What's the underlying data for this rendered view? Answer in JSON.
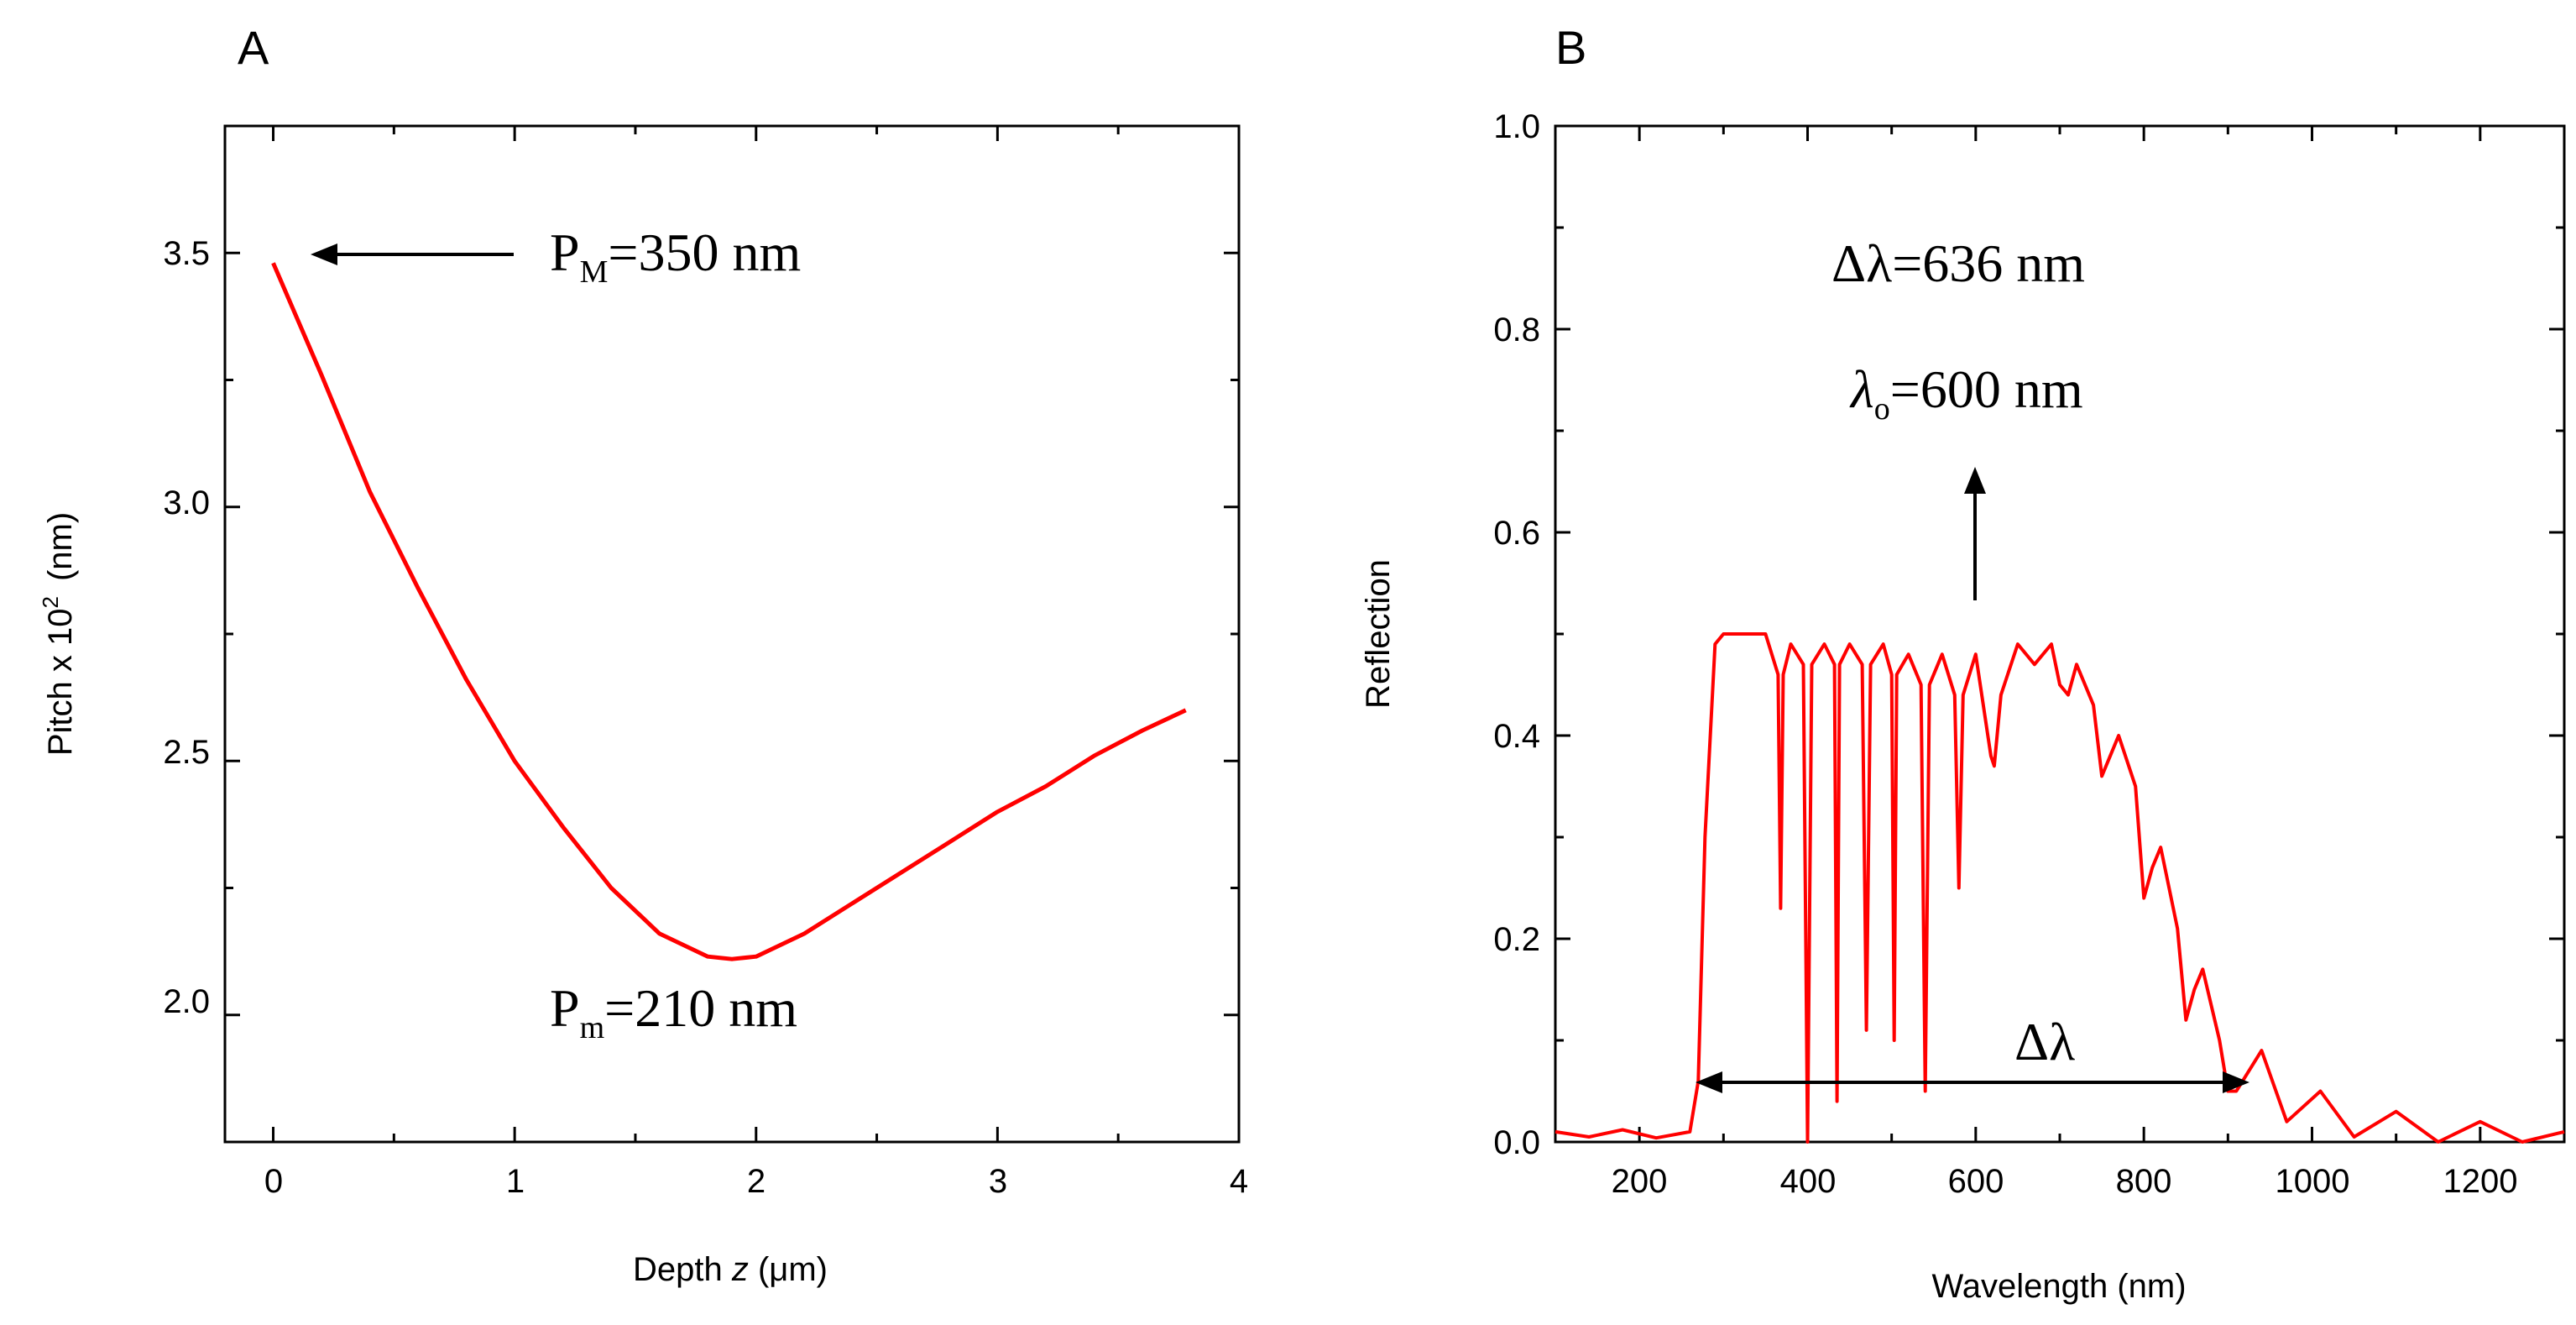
{
  "chart_data": [
    {
      "panel_label": "A",
      "type": "line",
      "xlabel": "Depth",
      "xlabel_var": "z",
      "xlabel_unit": "(μm)",
      "ylabel": "Pitch x 10",
      "ylabel_exp": "2",
      "ylabel_unit": "(nm)",
      "xlim": [
        -0.2,
        4.0
      ],
      "ylim": [
        1.75,
        3.75
      ],
      "x_ticks": [
        "0",
        "1",
        "2",
        "3",
        "4"
      ],
      "y_ticks": [
        "2.0",
        "2.5",
        "3.0",
        "3.5"
      ],
      "series": [
        {
          "color": "#ff0000",
          "x": [
            0.0,
            0.2,
            0.4,
            0.6,
            0.8,
            1.0,
            1.2,
            1.4,
            1.6,
            1.8,
            1.9,
            2.0,
            2.2,
            2.4,
            2.6,
            2.8,
            3.0,
            3.2,
            3.4,
            3.6,
            3.78
          ],
          "y": [
            3.48,
            3.26,
            3.03,
            2.84,
            2.66,
            2.5,
            2.37,
            2.25,
            2.16,
            2.115,
            2.11,
            2.115,
            2.16,
            2.22,
            2.28,
            2.34,
            2.4,
            2.45,
            2.51,
            2.56,
            2.6
          ]
        }
      ],
      "annotations": [
        {
          "main": "P",
          "sub": "M",
          "rest": "=350 nm"
        },
        {
          "main": "P",
          "sub": "m",
          "rest": "=210 nm"
        }
      ]
    },
    {
      "panel_label": "B",
      "type": "line",
      "xlabel": "Wavelength (nm)",
      "ylabel": "Reflection",
      "xlim": [
        100,
        1300
      ],
      "ylim": [
        0.0,
        1.0
      ],
      "x_ticks": [
        "200",
        "400",
        "600",
        "800",
        "1000",
        "1200"
      ],
      "y_ticks": [
        "0.0",
        "0.2",
        "0.4",
        "0.6",
        "0.8",
        "1.0"
      ],
      "series": [
        {
          "color": "#ff0000",
          "x": [
            100,
            140,
            180,
            220,
            260,
            270,
            278,
            290,
            300,
            320,
            350,
            365,
            368,
            371,
            380,
            395,
            400,
            405,
            420,
            432,
            435,
            438,
            450,
            465,
            470,
            475,
            490,
            500,
            503,
            506,
            520,
            535,
            540,
            545,
            560,
            575,
            580,
            585,
            600,
            618,
            622,
            630,
            650,
            670,
            690,
            700,
            710,
            720,
            740,
            750,
            760,
            770,
            790,
            800,
            810,
            820,
            840,
            850,
            860,
            870,
            890,
            900,
            910,
            940,
            970,
            1010,
            1050,
            1100,
            1150,
            1200,
            1250,
            1300
          ],
          "y": [
            0.01,
            0.005,
            0.012,
            0.004,
            0.01,
            0.06,
            0.3,
            0.49,
            0.5,
            0.5,
            0.5,
            0.46,
            0.23,
            0.46,
            0.49,
            0.47,
            0.0,
            0.47,
            0.49,
            0.47,
            0.04,
            0.47,
            0.49,
            0.47,
            0.11,
            0.47,
            0.49,
            0.46,
            0.1,
            0.46,
            0.48,
            0.45,
            0.05,
            0.45,
            0.48,
            0.44,
            0.25,
            0.44,
            0.48,
            0.38,
            0.37,
            0.44,
            0.49,
            0.47,
            0.49,
            0.45,
            0.44,
            0.47,
            0.43,
            0.36,
            0.38,
            0.4,
            0.35,
            0.24,
            0.27,
            0.29,
            0.21,
            0.12,
            0.15,
            0.17,
            0.1,
            0.05,
            0.05,
            0.09,
            0.02,
            0.05,
            0.005,
            0.03,
            0.0,
            0.02,
            0.0,
            0.01
          ]
        }
      ],
      "annotations": [
        {
          "main": "Δλ",
          "rest": "=636 nm"
        },
        {
          "main": "λ",
          "sub": "o",
          "rest": "=600 nm"
        },
        {
          "main": "Δλ"
        }
      ]
    }
  ]
}
